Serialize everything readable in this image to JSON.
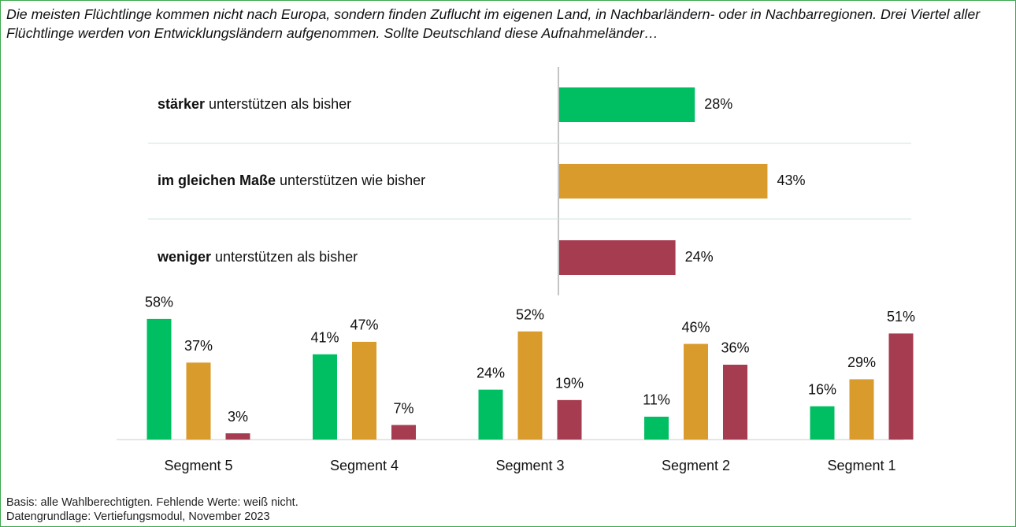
{
  "title": "Die meisten Flüchtlinge kommen nicht nach Europa, sondern finden Zuflucht im eigenen Land, in Nachbarländern- oder in Nachbarregionen. Drei Viertel aller Flüchtlinge werden von Entwicklungsländern aufgenommen. Sollte Deutschland diese Aufnahmeländer…",
  "chart_data": [
    {
      "type": "hbar",
      "categories": [
        [
          "stärker",
          " unterstützen als bisher"
        ],
        [
          "im gleichen Maße",
          " unterstützen wie bisher"
        ],
        [
          "weniger",
          " unterstützen als bisher"
        ]
      ],
      "values": [
        28,
        43,
        24
      ],
      "value_labels": [
        "28%",
        "43%",
        "24%"
      ],
      "colors": [
        "#00bf63",
        "#d99b2b",
        "#a63c50"
      ]
    },
    {
      "type": "bar",
      "categories": [
        "Segment 5",
        "Segment 4",
        "Segment 3",
        "Segment 2",
        "Segment 1"
      ],
      "series": [
        {
          "color": "#00bf63",
          "values": [
            58,
            41,
            24,
            11,
            16
          ],
          "value_labels": [
            "58%",
            "41%",
            "24%",
            "11%",
            "16%"
          ]
        },
        {
          "color": "#d99b2b",
          "values": [
            37,
            47,
            52,
            46,
            29
          ],
          "value_labels": [
            "37%",
            "47%",
            "52%",
            "46%",
            "29%"
          ]
        },
        {
          "color": "#a63c50",
          "values": [
            3,
            7,
            19,
            36,
            51
          ],
          "value_labels": [
            "3%",
            "7%",
            "19%",
            "36%",
            "51%"
          ]
        }
      ]
    }
  ],
  "footnotes": [
    "Basis: alle Wahlberechtigten. Fehlende Werte: weiß nicht.",
    "Datengrundlage: Vertiefungsmodul, November 2023"
  ]
}
